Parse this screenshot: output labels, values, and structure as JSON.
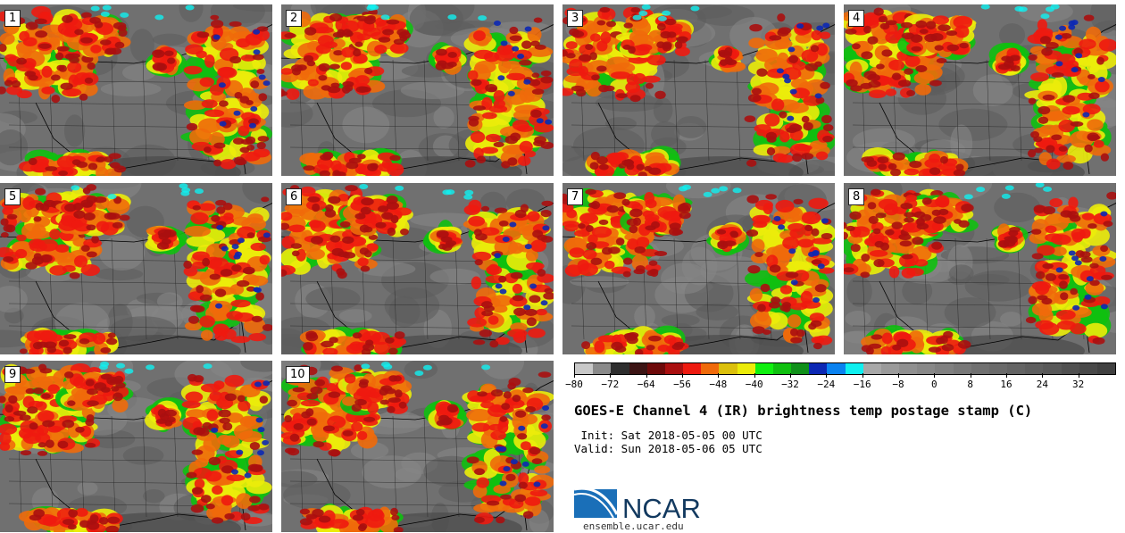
{
  "panels": [
    {
      "label": "1"
    },
    {
      "label": "2"
    },
    {
      "label": "3"
    },
    {
      "label": "4"
    },
    {
      "label": "5"
    },
    {
      "label": "6"
    },
    {
      "label": "7"
    },
    {
      "label": "8"
    },
    {
      "label": "9"
    },
    {
      "label": "10"
    }
  ],
  "colorbar": {
    "colors": [
      "#c8c8c8",
      "#8a8a8a",
      "#2e2e2e",
      "#3c1414",
      "#6e0a0a",
      "#aa1010",
      "#ee1a10",
      "#f06a0a",
      "#dcc00c",
      "#ecec0a",
      "#10f010",
      "#10c010",
      "#10901a",
      "#0c28b4",
      "#0a82f0",
      "#10f0f0",
      "#a8a8a8",
      "#9a9a9a",
      "#909090",
      "#888888",
      "#808080",
      "#787878",
      "#707070",
      "#6a6a6a",
      "#646464",
      "#5e5e5e",
      "#585858",
      "#505050",
      "#484848",
      "#404040"
    ],
    "ticks": [
      "−80",
      "−72",
      "−64",
      "−56",
      "−48",
      "−40",
      "−32",
      "−24",
      "−16",
      "−8",
      "0",
      "8",
      "16",
      "24",
      "32"
    ]
  },
  "title": "GOES-E Channel 4 (IR) brightness temp postage stamp (C)",
  "init_line": " Init: Sat 2018-05-05 00 UTC",
  "valid_line": "Valid: Sun 2018-05-06 05 UTC",
  "logo_text": "NCAR",
  "logo_url": "ensemble.ucar.edu"
}
